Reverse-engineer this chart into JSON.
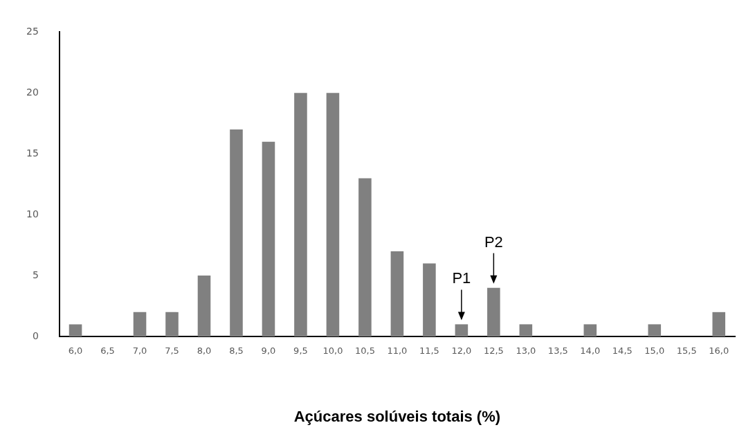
{
  "chart_data": {
    "type": "bar",
    "xlabel": "Açúcares solúveis totais (%)",
    "categories": [
      "6,0",
      "6,5",
      "7,0",
      "7,5",
      "8,0",
      "8,5",
      "9,0",
      "9,5",
      "10,0",
      "10,5",
      "11,0",
      "11,5",
      "12,0",
      "12,5",
      "13,0",
      "13,5",
      "14,0",
      "14,5",
      "15,0",
      "15,5",
      "16,0"
    ],
    "values": [
      1,
      0,
      2,
      2,
      5,
      17,
      16,
      20,
      20,
      13,
      7,
      6,
      1,
      4,
      1,
      0,
      1,
      0,
      1,
      0,
      2
    ],
    "color": "#808080",
    "ylim": [
      0,
      25
    ],
    "yticks": [
      0,
      5,
      10,
      15,
      20,
      25
    ],
    "grid": false,
    "legend": false,
    "annotations": [
      {
        "text": "P1",
        "x": "12,0",
        "y": 1
      },
      {
        "text": "P2",
        "x": "12,5",
        "y": 4
      }
    ]
  }
}
